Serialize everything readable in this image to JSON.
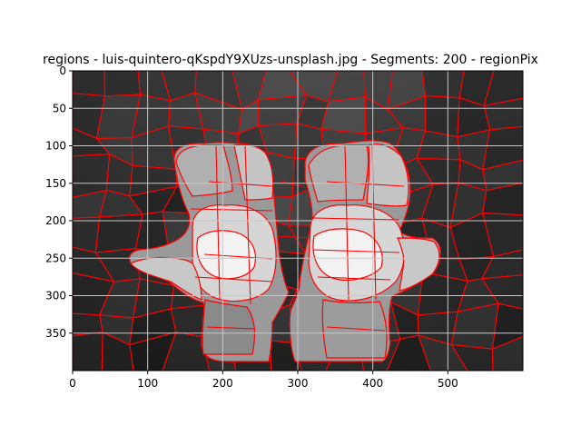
{
  "chart_data": {
    "type": "heatmap",
    "title": "regions - luis-quintero-qKspdY9XUzs-unsplash.jpg - Segments: 200 - regionPix",
    "xlabel": "",
    "ylabel": "",
    "xlim": [
      0,
      600
    ],
    "ylim": [
      400,
      0
    ],
    "x_ticks": [
      0,
      100,
      200,
      300,
      400,
      500
    ],
    "y_ticks": [
      0,
      50,
      100,
      150,
      200,
      250,
      300,
      350
    ],
    "grid": true,
    "image_description_colors": {
      "background": "#2a2a2a",
      "boundaries": "#ff0000",
      "grid": "#c8c8c8"
    }
  }
}
